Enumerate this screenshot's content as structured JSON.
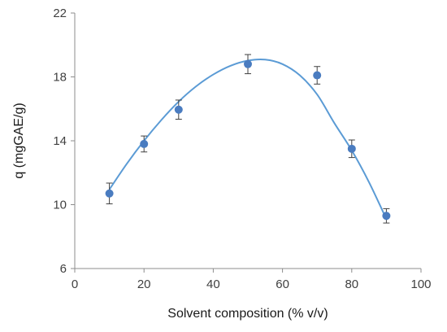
{
  "chart_data": {
    "type": "scatter",
    "xlabel": "Solvent composition (% v/v)",
    "ylabel": "q (mgGAE/g)",
    "xlim": [
      0,
      100
    ],
    "ylim": [
      6,
      22
    ],
    "x_ticks": [
      0,
      20,
      40,
      60,
      80,
      100
    ],
    "y_ticks": [
      6,
      10,
      14,
      18,
      22
    ],
    "grid": false,
    "legend": "none",
    "marker_color": "#4a7cc0",
    "line_color": "#5b9bd5",
    "series": [
      {
        "x": [
          10,
          20,
          30,
          50,
          70,
          80,
          90
        ],
        "y": [
          10.7,
          13.8,
          15.95,
          18.8,
          18.1,
          13.5,
          9.3
        ],
        "error": [
          0.65,
          0.5,
          0.6,
          0.6,
          0.55,
          0.55,
          0.45
        ]
      }
    ],
    "trendline": {
      "type": "polynomial-fit",
      "x": [
        10,
        15,
        20,
        25,
        30,
        35,
        40,
        45,
        50,
        55,
        60,
        65,
        70,
        75,
        80,
        85,
        90
      ],
      "y": [
        10.95,
        12.55,
        14.0,
        15.3,
        16.45,
        17.4,
        18.15,
        18.7,
        19.02,
        19.08,
        18.8,
        18.1,
        16.9,
        15.1,
        13.4,
        11.4,
        9.1
      ]
    }
  }
}
